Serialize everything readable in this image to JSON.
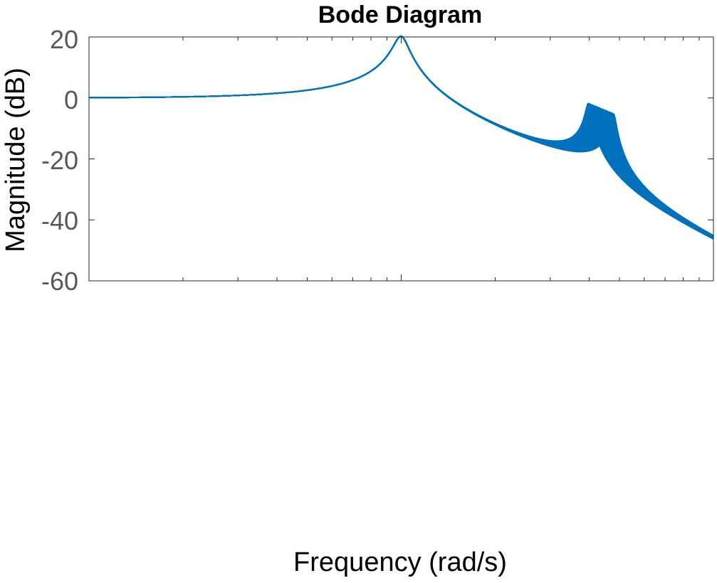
{
  "chart_data": {
    "type": "line",
    "title": "Bode Diagram",
    "xlabel": "Frequency  (rad/s)",
    "ylabel": "Magnitude (dB)",
    "yticks": [
      "20",
      "0",
      "-20",
      "-40",
      "-60"
    ],
    "ylim": [
      -60,
      20
    ],
    "xscale": "log",
    "xlim_decades": [
      -1,
      1
    ],
    "line_color": "#0072BD",
    "series_count": 30,
    "resonance_1": {
      "freq_decade": 0,
      "peak_db": 20.5
    },
    "resonance_2": {
      "freq_decade_range": [
        0.6,
        0.68
      ],
      "peak_db_range": [
        -0.4,
        1.5
      ]
    },
    "end_db_range": [
      -54,
      -52
    ],
    "grid": false,
    "legend": "none"
  }
}
